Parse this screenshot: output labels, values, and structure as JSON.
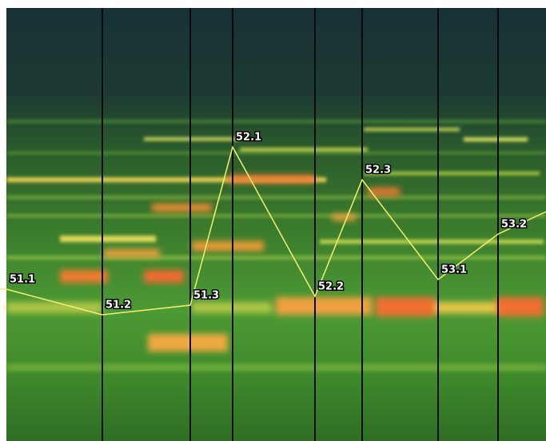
{
  "markers": [
    {
      "label": "51.1"
    },
    {
      "label": "51.2"
    },
    {
      "label": "51.3"
    },
    {
      "label": "52.1"
    },
    {
      "label": "52.2"
    },
    {
      "label": "52.3"
    },
    {
      "label": "53.1"
    },
    {
      "label": "53.2"
    }
  ]
}
